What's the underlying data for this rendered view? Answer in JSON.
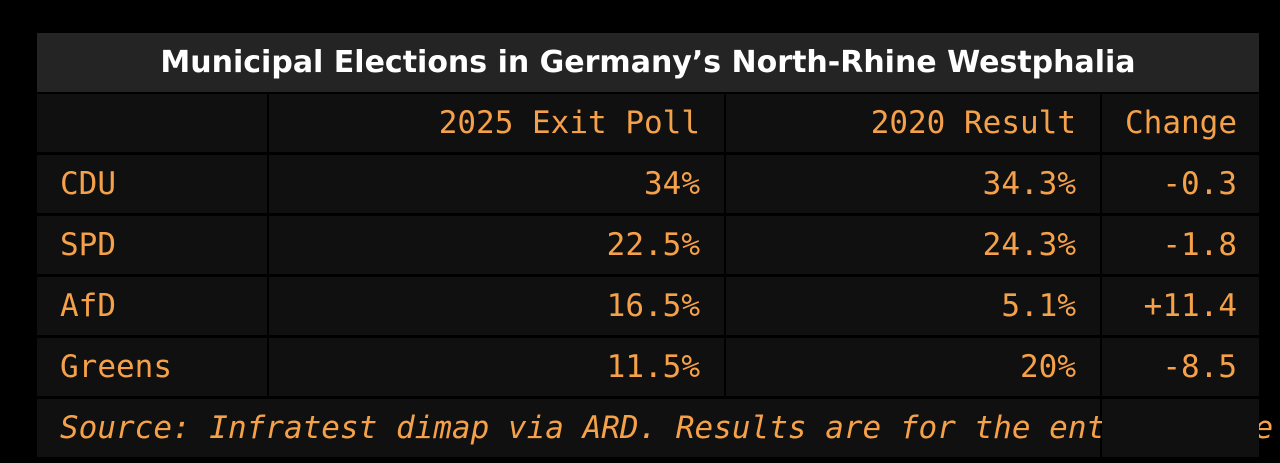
{
  "chart_data": {
    "type": "table",
    "title": "Municipal Elections in Germany’s North-Rhine Westphalia",
    "columns": [
      "",
      "2025 Exit Poll",
      "2020 Result",
      "Change"
    ],
    "rows": [
      {
        "party": "CDU",
        "exit_poll_2025": "34%",
        "result_2020": "34.3%",
        "change": "-0.3"
      },
      {
        "party": "SPD",
        "exit_poll_2025": "22.5%",
        "result_2020": "24.3%",
        "change": "-1.8"
      },
      {
        "party": "AfD",
        "exit_poll_2025": "16.5%",
        "result_2020": "5.1%",
        "change": "+11.4"
      },
      {
        "party": "Greens",
        "exit_poll_2025": "11.5%",
        "result_2020": "20%",
        "change": "-8.5"
      }
    ],
    "source": "Source: Infratest dimap via ARD. Results are for the entire state"
  },
  "colors": {
    "title_text": "#ffffff",
    "title_bg": "#242424",
    "cell_text": "#f5a14a",
    "cell_bg": "#101010",
    "background": "#000000"
  }
}
